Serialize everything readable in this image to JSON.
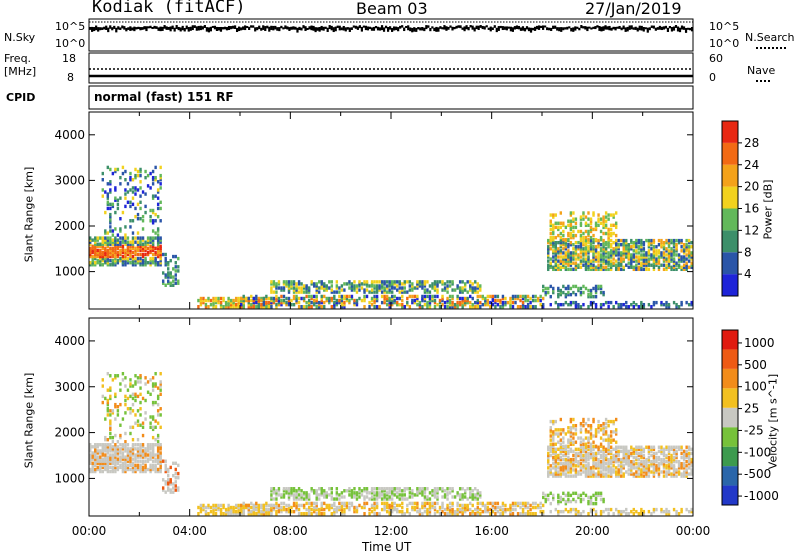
{
  "header": {
    "station": "Kodiak (fitACF)",
    "beam": "Beam 03",
    "date": "27/Jan/2019"
  },
  "noise_panel": {
    "left_label": "N.Sky",
    "right_label": "N.Search",
    "left_ticks": [
      "10^5",
      "10^0"
    ],
    "right_ticks": [
      "10^5",
      "10^0"
    ]
  },
  "freq_panel": {
    "left_label_1": "Freq.",
    "left_label_2": "[MHz]",
    "right_label": "Nave",
    "left_ticks": [
      "18",
      "8"
    ],
    "right_ticks": [
      "60",
      "0"
    ]
  },
  "cpid": {
    "label": "CPID",
    "value": "normal (fast) 151 RF"
  },
  "colors": {
    "power_scale": [
      "#1e24d8",
      "#2a55a8",
      "#3c8f6a",
      "#62b85a",
      "#f2d21e",
      "#f4a21a",
      "#f26a14",
      "#e82812"
    ],
    "velocity_scale": [
      "#2238c8",
      "#2a66aa",
      "#3c9a4e",
      "#76c23a",
      "#c8c8c2",
      "#f2c020",
      "#f28c1a",
      "#ee5a14",
      "#e01a10"
    ],
    "scatter_gray": "#c8c8c2"
  },
  "chart_data": [
    {
      "type": "heatmap",
      "title": "",
      "xlabel": "",
      "ylabel": "Slant Range [km]",
      "xlim": [
        0,
        24
      ],
      "ylim": [
        180,
        4500
      ],
      "yticks": [
        1000,
        2000,
        3000,
        4000
      ],
      "colorbar": {
        "label": "Power [dB]",
        "ticks": [
          "4",
          "8",
          "12",
          "16",
          "20",
          "24",
          "28"
        ]
      },
      "regions": [
        {
          "x": [
            0.6,
            2.8
          ],
          "y": [
            1000,
            3300
          ],
          "level": "weak-blue",
          "note": "patchy"
        },
        {
          "x": [
            0.0,
            2.9
          ],
          "y": [
            1200,
            1700
          ],
          "level": "strong-red"
        },
        {
          "x": [
            4.5,
            7.0
          ],
          "y": [
            250,
            450
          ],
          "level": "medium-orange"
        },
        {
          "x": [
            6.0,
            18.0
          ],
          "y": [
            250,
            800
          ],
          "level": "mixed"
        },
        {
          "x": [
            18.0,
            24.0
          ],
          "y": [
            1000,
            2300
          ],
          "level": "medium-green"
        }
      ]
    },
    {
      "type": "heatmap",
      "title": "",
      "xlabel": "Time UT",
      "ylabel": "Slant Range [km]",
      "xlim": [
        0,
        24
      ],
      "ylim": [
        180,
        4500
      ],
      "xticks": [
        "00:00",
        "04:00",
        "08:00",
        "12:00",
        "16:00",
        "20:00",
        "00:00"
      ],
      "yticks": [
        1000,
        2000,
        3000,
        4000
      ],
      "colorbar": {
        "label": "Velocity [m s^-1]",
        "ticks": [
          "1000",
          "500",
          "100",
          "25",
          "-25",
          "-100",
          "-500",
          "-1000"
        ]
      },
      "regions": [
        {
          "x": [
            0.0,
            3.0
          ],
          "y": [
            1000,
            1700
          ],
          "level": "ground-scatter-gray"
        },
        {
          "x": [
            0.5,
            2.8
          ],
          "y": [
            1800,
            3300
          ],
          "level": "mixed-orange-green"
        },
        {
          "x": [
            4.5,
            18.0
          ],
          "y": [
            250,
            800
          ],
          "level": "mixed"
        },
        {
          "x": [
            18.0,
            24.0
          ],
          "y": [
            1000,
            2300
          ],
          "level": "gray-orange"
        }
      ]
    }
  ]
}
